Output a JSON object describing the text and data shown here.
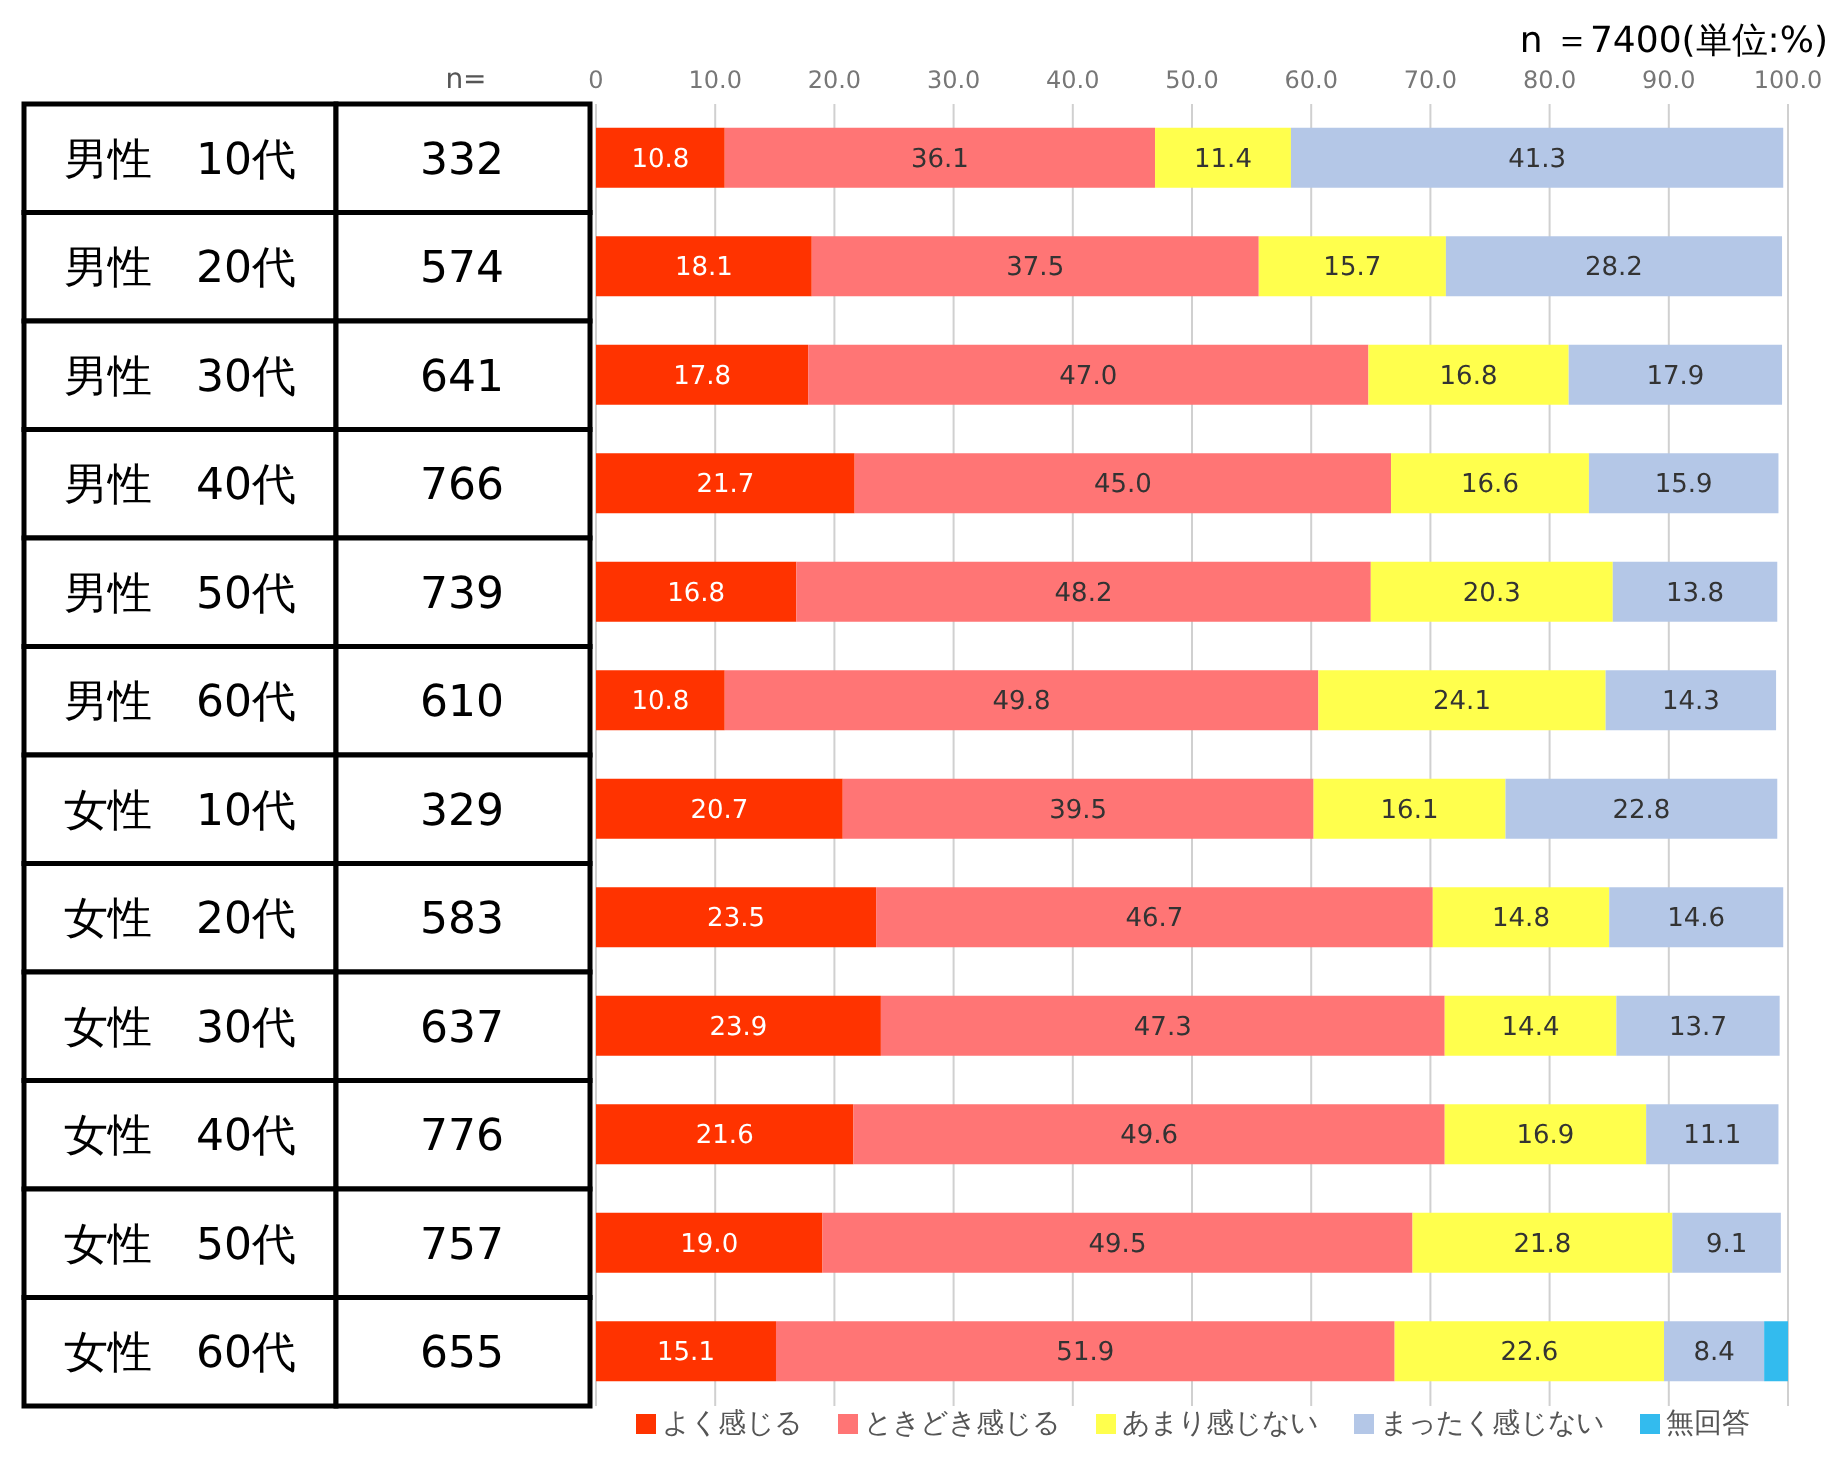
{
  "chart_data": {
    "type": "bar",
    "orientation": "horizontal",
    "stacked": true,
    "subtitle": "n ＝7400(単位:%)",
    "annotations": [
      "n="
    ],
    "categories": [
      "男性　10代",
      "男性　20代",
      "男性　30代",
      "男性　40代",
      "男性　50代",
      "男性　60代",
      "女性　10代",
      "女性　20代",
      "女性　30代",
      "女性　40代",
      "女性　50代",
      "女性　60代"
    ],
    "y2_categories": [
      "332",
      "574",
      "641",
      "766",
      "739",
      "610",
      "329",
      "583",
      "637",
      "776",
      "757",
      "655"
    ],
    "series": [
      {
        "name": "よく感じる",
        "color": "#ff3300",
        "values": [
          10.8,
          18.1,
          17.8,
          21.7,
          16.8,
          10.8,
          20.7,
          23.5,
          23.9,
          21.6,
          19.0,
          15.1
        ],
        "value_labels": [
          "10.8",
          "18.1",
          "17.8",
          "21.7",
          "16.8",
          "10.8",
          "20.7",
          "23.5",
          "23.9",
          "21.6",
          "19.0",
          "15.1"
        ]
      },
      {
        "name": "ときどき感じる",
        "color": "#ff7575",
        "values": [
          36.1,
          37.5,
          47.0,
          45.0,
          48.2,
          49.8,
          39.5,
          46.7,
          47.3,
          49.6,
          49.5,
          51.9
        ],
        "value_labels": [
          "36.1",
          "37.5",
          "47.0",
          "45.0",
          "48.2",
          "49.8",
          "39.5",
          "46.7",
          "47.3",
          "49.6",
          "49.5",
          "51.9"
        ]
      },
      {
        "name": "あまり感じない",
        "color": "#ffff4d",
        "values": [
          11.4,
          15.7,
          16.8,
          16.6,
          20.3,
          24.1,
          16.1,
          14.8,
          14.4,
          16.9,
          21.8,
          22.6
        ]
      },
      {
        "name": "まったく感じない",
        "color": "#b4c7e7",
        "values": [
          41.3,
          28.2,
          17.9,
          15.9,
          13.8,
          14.3,
          22.8,
          14.6,
          13.7,
          11.1,
          9.1,
          8.4
        ]
      },
      {
        "name": "無回答",
        "color": "#33bbee",
        "values": [
          null,
          null,
          null,
          null,
          null,
          null,
          null,
          null,
          null,
          null,
          null,
          2.0
        ],
        "value_labels": [
          null,
          null,
          null,
          null,
          null,
          null,
          null,
          null,
          null,
          null,
          null,
          null
        ]
      }
    ],
    "data_labels": true,
    "xlim": [
      0,
      100
    ],
    "xticks": [
      0,
      {
        "value": 10,
        "label": "10.0"
      },
      {
        "value": 20,
        "label": "20.0"
      },
      {
        "value": 30,
        "label": "30.0"
      },
      {
        "value": 40,
        "label": "40.0"
      },
      {
        "value": 50,
        "label": "50.0"
      },
      {
        "value": 60,
        "label": "60.0"
      },
      {
        "value": 70,
        "label": "70.0"
      },
      {
        "value": 80,
        "label": "80.0"
      },
      {
        "value": 90,
        "label": "90.0"
      },
      {
        "value": 100,
        "label": "100.0"
      }
    ],
    "grid": "x",
    "legend": "bottom"
  }
}
